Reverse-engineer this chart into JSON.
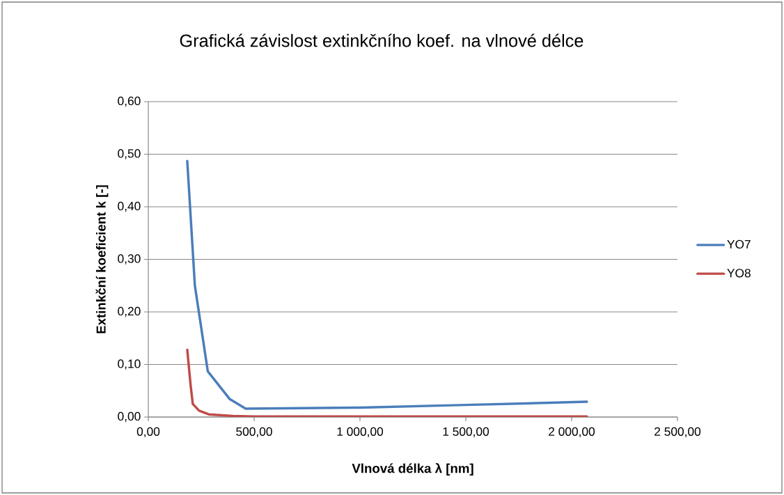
{
  "chart_data": {
    "type": "line",
    "title": "Grafická závislost extinkčního koef. na vlnové délce",
    "xlabel": "Vlnová délka  λ [nm]",
    "ylabel": "Extinkční koeficient k [-]",
    "series": [
      {
        "name": "YO7",
        "color": "#4a7ebb",
        "x": [
          184,
          220,
          281,
          385,
          460,
          1000,
          1500,
          2072
        ],
        "values": [
          0.487,
          0.25,
          0.087,
          0.034,
          0.016,
          0.018,
          0.023,
          0.029
        ]
      },
      {
        "name": "YO8",
        "color": "#be4b48",
        "x": [
          184,
          200,
          210,
          240,
          286,
          400,
          500,
          1000,
          2072
        ],
        "values": [
          0.128,
          0.06,
          0.025,
          0.012,
          0.005,
          0.002,
          0.001,
          0.001,
          0.001
        ]
      }
    ],
    "xlim": [
      0,
      2500
    ],
    "ylim": [
      0,
      0.6
    ],
    "xticks": [
      {
        "value": 0,
        "label": "0,00"
      },
      {
        "value": 500,
        "label": "500,00"
      },
      {
        "value": 1000,
        "label": "1 000,00"
      },
      {
        "value": 1500,
        "label": "1 500,00"
      },
      {
        "value": 2000,
        "label": "2 000,00"
      },
      {
        "value": 2500,
        "label": "2 500,00"
      }
    ],
    "yticks": [
      {
        "value": 0,
        "label": "0,00"
      },
      {
        "value": 0.1,
        "label": "0,10"
      },
      {
        "value": 0.2,
        "label": "0,20"
      },
      {
        "value": 0.3,
        "label": "0,30"
      },
      {
        "value": 0.4,
        "label": "0,40"
      },
      {
        "value": 0.5,
        "label": "0,50"
      },
      {
        "value": 0.6,
        "label": "0,60"
      }
    ],
    "grid": "y",
    "legend": "right",
    "marker": "none",
    "line_style": "solid"
  }
}
